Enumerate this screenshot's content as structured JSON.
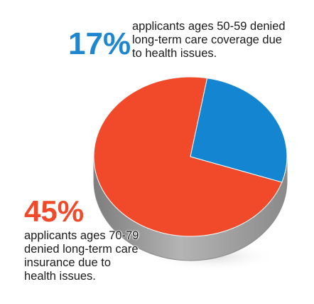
{
  "chart_data": {
    "type": "pie",
    "style": "3d",
    "categories": [
      "applicants ages 50-59",
      "applicants ages 70-79"
    ],
    "values": [
      17,
      45
    ],
    "colors": {
      "ages_50_59": "#1486d1",
      "ages_70_79": "#f04a2b",
      "pie_side": "#9a9a9a"
    },
    "annotations": [
      {
        "value_label": "17%",
        "lines": [
          "applicants ages 50-59 denied",
          "long-term care coverage due",
          "to health issues."
        ]
      },
      {
        "value_label": "45%",
        "lines": [
          "applicants ages 70-79",
          "denied long-term care",
          "insurance due to",
          "health issues."
        ]
      }
    ]
  }
}
